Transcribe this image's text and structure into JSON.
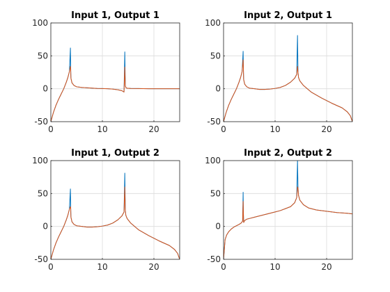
{
  "colors": {
    "series_a": "#0072BD",
    "series_b": "#D95319",
    "axis": "#262626",
    "grid": "#dcdcdc"
  },
  "chart_data": [
    {
      "type": "line",
      "title": "Input 1, Output 1",
      "xlabel": "",
      "ylabel": "",
      "xlim": [
        0,
        25
      ],
      "ylim": [
        -50,
        100
      ],
      "xticks": [
        0,
        10,
        20
      ],
      "yticks": [
        -50,
        0,
        50,
        100
      ],
      "grid": true,
      "series": [
        {
          "x": [
            0,
            0.5,
            1,
            1.5,
            2,
            2.5,
            3,
            3.3,
            3.6,
            3.8,
            3.85,
            3.9,
            4.1,
            4.5,
            5,
            6,
            7,
            8,
            9,
            10,
            11,
            12,
            13,
            13.8,
            14.2,
            14.35,
            14.45,
            14.55,
            14.8,
            15.5,
            17,
            19,
            21,
            23,
            25
          ],
          "values": [
            -50,
            -36,
            -25,
            -16,
            -8,
            0,
            10,
            17,
            26,
            62,
            32,
            16,
            9,
            5,
            3,
            2,
            1.5,
            1,
            0.5,
            0.3,
            0,
            -0.5,
            -1.5,
            -3,
            -5,
            56,
            5,
            2,
            0.8,
            0.5,
            0.3,
            0.1,
            0,
            0,
            0
          ]
        },
        {
          "x": [
            0,
            0.5,
            1,
            1.5,
            2,
            2.5,
            3,
            3.3,
            3.6,
            3.8,
            3.85,
            3.9,
            4.1,
            4.5,
            5,
            6,
            7,
            8,
            9,
            10,
            11,
            12,
            13,
            13.8,
            14.2,
            14.35,
            14.45,
            14.55,
            14.8,
            15.5,
            17,
            19,
            21,
            23,
            25
          ],
          "values": [
            -50,
            -36,
            -25,
            -16,
            -8,
            0,
            10,
            17,
            26,
            34,
            28,
            16,
            9,
            5,
            3,
            2,
            1.5,
            1,
            0.5,
            0.3,
            0,
            -0.5,
            -1.5,
            -3,
            -5,
            33,
            5,
            2,
            0.8,
            0.5,
            0.3,
            0.1,
            0,
            0,
            0
          ]
        }
      ]
    },
    {
      "type": "line",
      "title": "Input 2, Output 1",
      "xlabel": "",
      "ylabel": "",
      "xlim": [
        0,
        25
      ],
      "ylim": [
        -50,
        100
      ],
      "xticks": [
        0,
        10,
        20
      ],
      "yticks": [
        -50,
        0,
        50,
        100
      ],
      "grid": true,
      "series": [
        {
          "x": [
            0,
            0.5,
            1,
            1.5,
            2,
            2.5,
            3,
            3.3,
            3.6,
            3.8,
            3.85,
            3.9,
            4.1,
            4.5,
            5,
            6,
            7,
            8,
            9,
            10,
            11,
            12,
            13,
            13.8,
            14.2,
            14.35,
            14.45,
            14.55,
            14.8,
            15.5,
            17,
            19,
            21,
            23,
            24,
            24.6,
            25
          ],
          "values": [
            -50,
            -36,
            -25,
            -16,
            -8,
            0,
            10,
            17,
            26,
            57,
            30,
            14,
            7,
            3,
            1,
            0,
            -1,
            -1,
            -0.5,
            0.5,
            2,
            5,
            10,
            16,
            22,
            81,
            25,
            17,
            12,
            5,
            -5,
            -14,
            -22,
            -29,
            -35,
            -41,
            -50
          ]
        },
        {
          "x": [
            0,
            0.5,
            1,
            1.5,
            2,
            2.5,
            3,
            3.3,
            3.6,
            3.8,
            3.85,
            3.9,
            4.1,
            4.5,
            5,
            6,
            7,
            8,
            9,
            10,
            11,
            12,
            13,
            13.8,
            14.2,
            14.35,
            14.45,
            14.55,
            14.8,
            15.5,
            17,
            19,
            21,
            23,
            24,
            24.6,
            25
          ],
          "values": [
            -50,
            -36,
            -25,
            -16,
            -8,
            0,
            10,
            17,
            26,
            44,
            30,
            14,
            7,
            3,
            1,
            0,
            -1,
            -1,
            -0.5,
            0.5,
            2,
            5,
            10,
            16,
            22,
            34,
            25,
            17,
            12,
            5,
            -5,
            -14,
            -22,
            -29,
            -35,
            -41,
            -50
          ]
        }
      ]
    },
    {
      "type": "line",
      "title": "Input 1, Output 2",
      "xlabel": "",
      "ylabel": "",
      "xlim": [
        0,
        25
      ],
      "ylim": [
        -50,
        100
      ],
      "xticks": [
        0,
        10,
        20
      ],
      "yticks": [
        -50,
        0,
        50,
        100
      ],
      "grid": true,
      "series": [
        {
          "x": [
            0,
            0.5,
            1,
            1.5,
            2,
            2.5,
            3,
            3.3,
            3.6,
            3.8,
            3.85,
            3.9,
            4.1,
            4.5,
            5,
            6,
            7,
            8,
            9,
            10,
            11,
            12,
            13,
            13.8,
            14.2,
            14.35,
            14.45,
            14.55,
            14.8,
            15.5,
            17,
            19,
            21,
            23,
            24,
            24.6,
            25
          ],
          "values": [
            -50,
            -36,
            -25,
            -16,
            -8,
            0,
            10,
            17,
            26,
            57,
            30,
            14,
            7,
            3,
            1,
            0,
            -1,
            -1,
            -0.5,
            0.5,
            2,
            5,
            10,
            16,
            22,
            81,
            25,
            17,
            12,
            5,
            -5,
            -14,
            -22,
            -29,
            -35,
            -41,
            -50
          ]
        },
        {
          "x": [
            0,
            0.5,
            1,
            1.5,
            2,
            2.5,
            3,
            3.3,
            3.6,
            3.8,
            3.85,
            3.9,
            4.1,
            4.5,
            5,
            6,
            7,
            8,
            9,
            10,
            11,
            12,
            13,
            13.8,
            14.2,
            14.35,
            14.45,
            14.55,
            14.8,
            15.5,
            17,
            19,
            21,
            23,
            24,
            24.6,
            25
          ],
          "values": [
            -50,
            -36,
            -25,
            -16,
            -8,
            0,
            10,
            17,
            26,
            30,
            28,
            14,
            7,
            3,
            1,
            0,
            -1,
            -1,
            -0.5,
            0.5,
            2,
            5,
            10,
            16,
            22,
            60,
            25,
            17,
            12,
            5,
            -5,
            -14,
            -22,
            -29,
            -35,
            -41,
            -50
          ]
        }
      ]
    },
    {
      "type": "line",
      "title": "Input 2, Output 2",
      "xlabel": "",
      "ylabel": "",
      "xlim": [
        0,
        25
      ],
      "ylim": [
        -50,
        100
      ],
      "xticks": [
        0,
        10,
        20
      ],
      "yticks": [
        -50,
        0,
        50,
        100
      ],
      "grid": true,
      "series": [
        {
          "x": [
            0,
            0.3,
            0.6,
            1,
            1.5,
            2,
            2.5,
            3,
            3.4,
            3.7,
            3.8,
            3.85,
            3.9,
            4.1,
            4.5,
            5,
            6,
            7,
            8,
            9,
            10,
            11,
            12,
            13,
            13.8,
            14.2,
            14.35,
            14.45,
            14.55,
            14.8,
            15.5,
            16.5,
            18,
            20,
            22,
            24,
            25
          ],
          "values": [
            -50,
            -20,
            -13,
            -8,
            -4,
            -1,
            1,
            3,
            5,
            8,
            52,
            20,
            6,
            9,
            11,
            12,
            14,
            16,
            18,
            20,
            22,
            24,
            27,
            30,
            36,
            44,
            100,
            58,
            47,
            40,
            33,
            28,
            25,
            23,
            21,
            20,
            19
          ]
        },
        {
          "x": [
            0,
            0.3,
            0.6,
            1,
            1.5,
            2,
            2.5,
            3,
            3.4,
            3.7,
            3.8,
            3.85,
            3.9,
            4.1,
            4.5,
            5,
            6,
            7,
            8,
            9,
            10,
            11,
            12,
            13,
            13.8,
            14.2,
            14.35,
            14.45,
            14.55,
            14.8,
            15.5,
            16.5,
            18,
            20,
            22,
            24,
            25
          ],
          "values": [
            -50,
            -20,
            -13,
            -8,
            -4,
            -1,
            1,
            3,
            5,
            8,
            38,
            20,
            6,
            9,
            11,
            12,
            14,
            16,
            18,
            20,
            22,
            24,
            27,
            30,
            36,
            44,
            60,
            58,
            47,
            40,
            33,
            28,
            25,
            23,
            21,
            20,
            19
          ]
        }
      ]
    }
  ]
}
